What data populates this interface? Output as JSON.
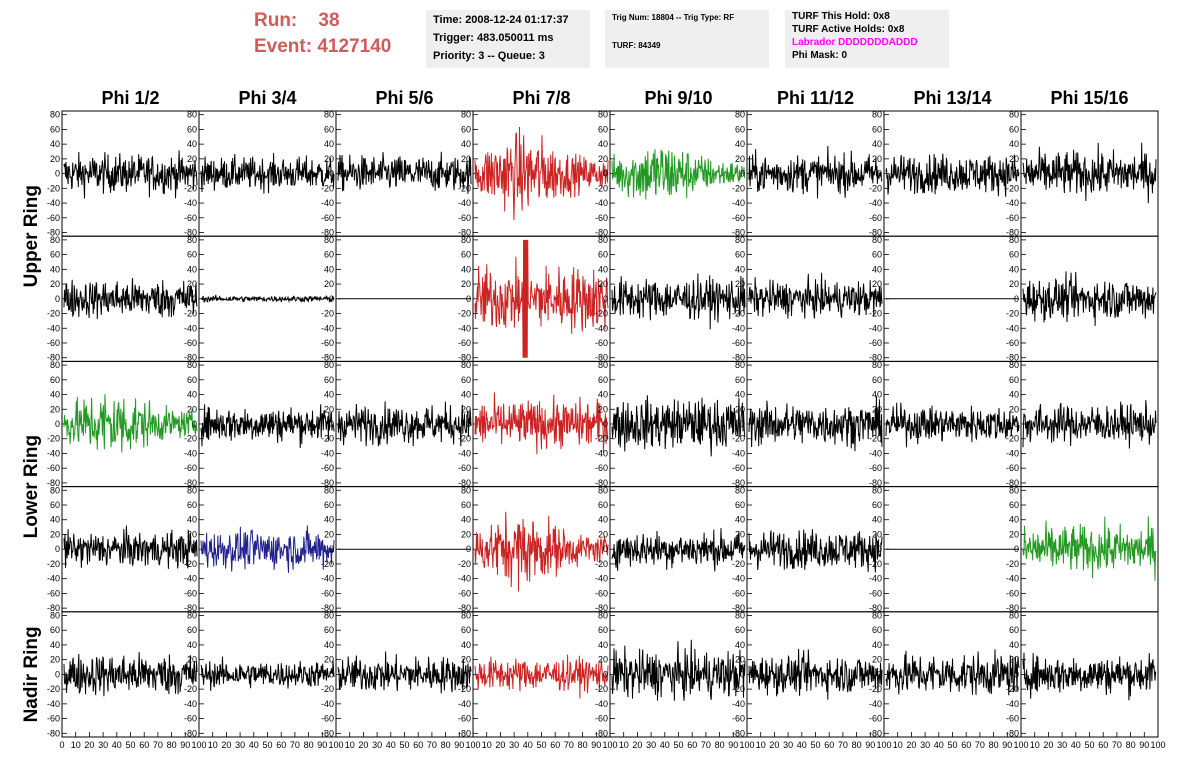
{
  "header": {
    "run_label": "Run:",
    "run_value": "38",
    "event_label": "Event:",
    "event_value": "4127140",
    "header_color": "#cd5c5c",
    "time_box": [
      "Time: 2008-12-24 01:17:37",
      "Trigger: 483.050011 ms",
      "Priority: 3 -- Queue: 3"
    ],
    "trig_box": [
      "Trig Num: 18804 -- Trig Type: RF",
      "TURF: 84349"
    ],
    "turf_box": [
      "TURF This Hold: 0x8",
      "TURF Active Holds: 0x8",
      "Labrador DDDDDDDADDD",
      "Phi Mask: 0"
    ],
    "labrador_color": "#ff00ff"
  },
  "columns": [
    "Phi 1/2",
    "Phi 3/4",
    "Phi 5/6",
    "Phi 7/8",
    "Phi 9/10",
    "Phi 11/12",
    "Phi 13/14",
    "Phi 15/16"
  ],
  "rings": [
    "Upper Ring",
    "Lower Ring",
    "Nadir Ring"
  ],
  "colors": {
    "black": "#000000",
    "red": "#cc2222",
    "green": "#229922",
    "blue": "#22228f"
  },
  "chart_data": {
    "type": "line",
    "description_of_axes": "shared",
    "ylim": [
      -85,
      85
    ],
    "y_ticks": [
      -80,
      -60,
      -40,
      -20,
      0,
      20,
      40,
      60,
      80
    ],
    "xlim": [
      0,
      100
    ],
    "x_tick_label_strings": [
      "0",
      "10",
      "20",
      "30",
      "40",
      "50",
      "60",
      "70",
      "80",
      "90",
      "100"
    ],
    "panels": [
      {
        "row": 0,
        "col": 0,
        "color": "black",
        "amp": 13,
        "env": "flat",
        "flat": false
      },
      {
        "row": 0,
        "col": 1,
        "color": "black",
        "amp": 11,
        "env": "flat",
        "flat": false
      },
      {
        "row": 0,
        "col": 2,
        "color": "black",
        "amp": 12,
        "env": "flat",
        "flat": false
      },
      {
        "row": 0,
        "col": 3,
        "color": "red",
        "amp": 20,
        "env": "burst",
        "flat": false
      },
      {
        "row": 0,
        "col": 4,
        "color": "green",
        "amp": 16,
        "env": "burst",
        "flat": false
      },
      {
        "row": 0,
        "col": 5,
        "color": "black",
        "amp": 13,
        "env": "flat",
        "flat": false
      },
      {
        "row": 0,
        "col": 6,
        "color": "black",
        "amp": 13,
        "env": "flat",
        "flat": false
      },
      {
        "row": 0,
        "col": 7,
        "color": "black",
        "amp": 15,
        "env": "flat",
        "flat": false
      },
      {
        "row": 1,
        "col": 0,
        "color": "black",
        "amp": 13,
        "env": "flat",
        "flat": false
      },
      {
        "row": 1,
        "col": 1,
        "color": "black",
        "amp": 2,
        "env": "flat",
        "flat": false
      },
      {
        "row": 1,
        "col": 2,
        "color": "black",
        "amp": 0,
        "env": "flat",
        "flat": true
      },
      {
        "row": 1,
        "col": 3,
        "color": "red",
        "amp": 22,
        "env": "spike",
        "flat": false
      },
      {
        "row": 1,
        "col": 4,
        "color": "black",
        "amp": 14,
        "env": "flat",
        "flat": false
      },
      {
        "row": 1,
        "col": 5,
        "color": "black",
        "amp": 12,
        "env": "flat",
        "flat": false
      },
      {
        "row": 1,
        "col": 6,
        "color": "black",
        "amp": 0,
        "env": "flat",
        "flat": true
      },
      {
        "row": 1,
        "col": 7,
        "color": "black",
        "amp": 14,
        "env": "flat",
        "flat": false
      },
      {
        "row": 2,
        "col": 0,
        "color": "green",
        "amp": 17,
        "env": "burst",
        "flat": false
      },
      {
        "row": 2,
        "col": 1,
        "color": "black",
        "amp": 12,
        "env": "flat",
        "flat": false
      },
      {
        "row": 2,
        "col": 2,
        "color": "black",
        "amp": 13,
        "env": "flat",
        "flat": false
      },
      {
        "row": 2,
        "col": 3,
        "color": "red",
        "amp": 16,
        "env": "flat",
        "flat": false
      },
      {
        "row": 2,
        "col": 4,
        "color": "black",
        "amp": 17,
        "env": "flat",
        "flat": false
      },
      {
        "row": 2,
        "col": 5,
        "color": "black",
        "amp": 14,
        "env": "flat",
        "flat": false
      },
      {
        "row": 2,
        "col": 6,
        "color": "black",
        "amp": 12,
        "env": "flat",
        "flat": false
      },
      {
        "row": 2,
        "col": 7,
        "color": "black",
        "amp": 13,
        "env": "flat",
        "flat": false
      },
      {
        "row": 3,
        "col": 0,
        "color": "black",
        "amp": 12,
        "env": "flat",
        "flat": false
      },
      {
        "row": 3,
        "col": 1,
        "color": "blue",
        "amp": 13,
        "env": "flat",
        "flat": false
      },
      {
        "row": 3,
        "col": 2,
        "color": "black",
        "amp": 0,
        "env": "flat",
        "flat": true
      },
      {
        "row": 3,
        "col": 3,
        "color": "red",
        "amp": 18,
        "env": "burst",
        "flat": false
      },
      {
        "row": 3,
        "col": 4,
        "color": "black",
        "amp": 12,
        "env": "flat",
        "flat": false
      },
      {
        "row": 3,
        "col": 5,
        "color": "black",
        "amp": 13,
        "env": "flat",
        "flat": false
      },
      {
        "row": 3,
        "col": 6,
        "color": "black",
        "amp": 0,
        "env": "flat",
        "flat": true
      },
      {
        "row": 3,
        "col": 7,
        "color": "green",
        "amp": 16,
        "env": "flat",
        "flat": false
      },
      {
        "row": 4,
        "col": 0,
        "color": "black",
        "amp": 14,
        "env": "flat",
        "flat": false
      },
      {
        "row": 4,
        "col": 1,
        "color": "black",
        "amp": 9,
        "env": "flat",
        "flat": false
      },
      {
        "row": 4,
        "col": 2,
        "color": "black",
        "amp": 12,
        "env": "flat",
        "flat": false
      },
      {
        "row": 4,
        "col": 3,
        "color": "red",
        "amp": 11,
        "env": "flat",
        "flat": false
      },
      {
        "row": 4,
        "col": 4,
        "color": "black",
        "amp": 16,
        "env": "flat",
        "flat": false
      },
      {
        "row": 4,
        "col": 5,
        "color": "black",
        "amp": 13,
        "env": "flat",
        "flat": false
      },
      {
        "row": 4,
        "col": 6,
        "color": "black",
        "amp": 14,
        "env": "flat",
        "flat": false
      },
      {
        "row": 4,
        "col": 7,
        "color": "black",
        "amp": 13,
        "env": "flat",
        "flat": false
      }
    ]
  }
}
